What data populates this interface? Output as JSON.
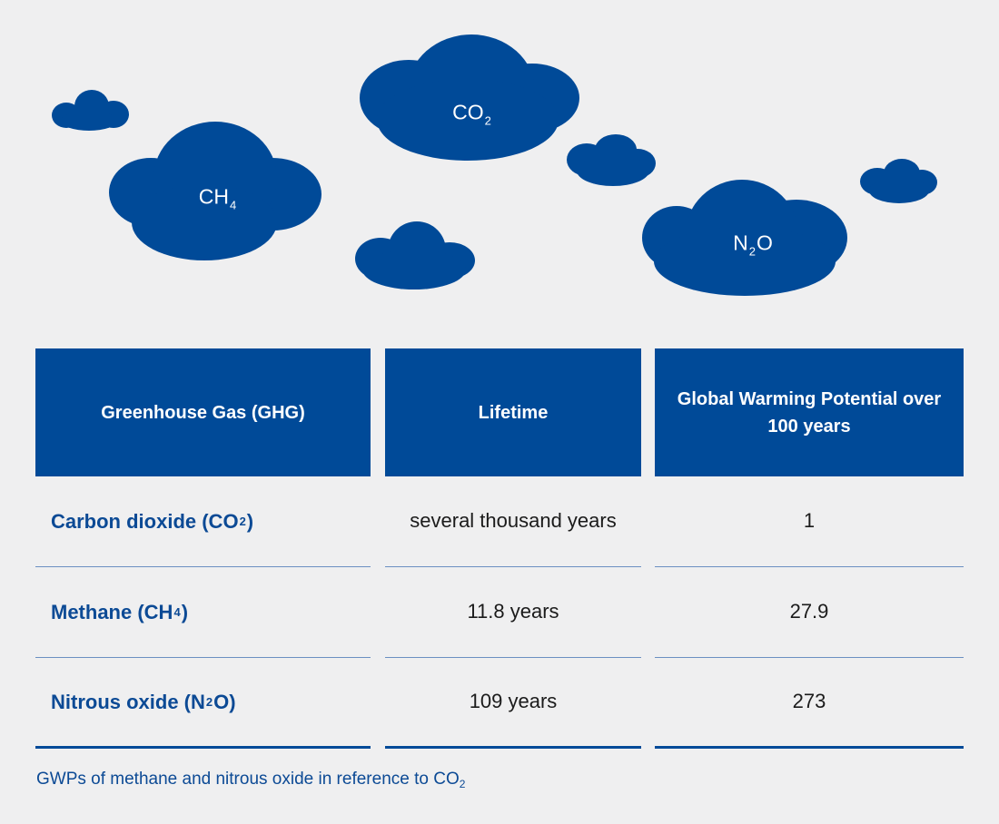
{
  "colors": {
    "brand_blue": "#004a98",
    "background": "#efeff0",
    "text_dark": "#1b1b1b",
    "divider": "#6b8fc2"
  },
  "clouds": {
    "co2": {
      "main": "CO",
      "sub": "2"
    },
    "ch4": {
      "main": "CH",
      "sub": "4"
    },
    "n2o": {
      "pre": "N",
      "sub": "2",
      "post": "O"
    }
  },
  "table": {
    "headers": {
      "gas": "Greenhouse Gas (GHG)",
      "lifetime": "Lifetime",
      "gwp": "Global Warming Potential over 100 years"
    },
    "rows": [
      {
        "gas_pre": "Carbon dioxide (CO",
        "gas_sub": "2",
        "gas_post": ")",
        "lifetime": "several thousand years",
        "gwp": "1"
      },
      {
        "gas_pre": "Methane (CH",
        "gas_sub": "4",
        "gas_post": ")",
        "lifetime": "11.8 years",
        "gwp": "27.9"
      },
      {
        "gas_pre": "Nitrous oxide (N",
        "gas_sub": "2",
        "gas_post": "O)",
        "lifetime": "109 years",
        "gwp": "273"
      }
    ]
  },
  "footnote": {
    "text": "GWPs of methane and nitrous oxide in reference to CO",
    "sub": "2"
  }
}
